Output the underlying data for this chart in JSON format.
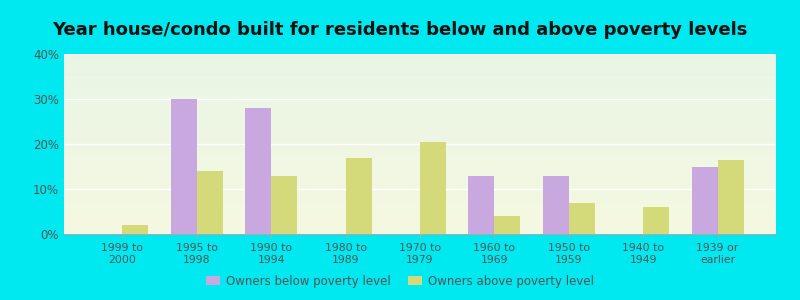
{
  "title": "Year house/condo built for residents below and above poverty levels",
  "categories": [
    "1999 to\n2000",
    "1995 to\n1998",
    "1990 to\n1994",
    "1980 to\n1989",
    "1970 to\n1979",
    "1960 to\n1969",
    "1950 to\n1959",
    "1940 to\n1949",
    "1939 or\nearlier"
  ],
  "below_poverty": [
    0,
    30,
    28,
    0,
    0,
    13,
    13,
    0,
    15
  ],
  "above_poverty": [
    2,
    14,
    13,
    17,
    20.5,
    4,
    7,
    6,
    16.5
  ],
  "below_color": "#c9a8e0",
  "above_color": "#d4d97a",
  "background_outer": "#00e8f0",
  "background_inner_top": "#e8f5e5",
  "background_inner_bottom": "#f5f8e0",
  "ylim": [
    0,
    40
  ],
  "yticks": [
    0,
    10,
    20,
    30,
    40
  ],
  "bar_width": 0.35,
  "legend_below_label": "Owners below poverty level",
  "legend_above_label": "Owners above poverty level",
  "title_fontsize": 13
}
